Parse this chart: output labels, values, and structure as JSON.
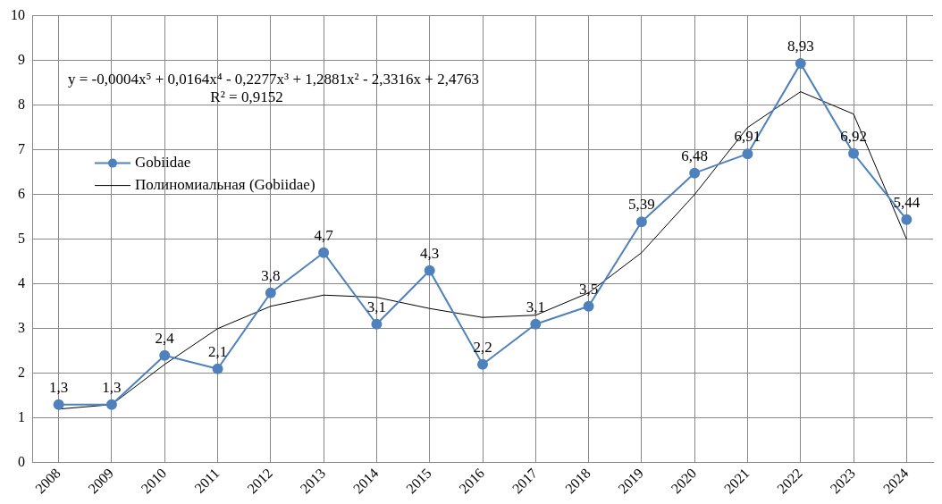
{
  "chart_data": {
    "type": "line",
    "categories": [
      "2008",
      "2009",
      "2010",
      "2011",
      "2012",
      "2013",
      "2014",
      "2015",
      "2016",
      "2017",
      "2018",
      "2019",
      "2020",
      "2021",
      "2022",
      "2023",
      "2024"
    ],
    "series": [
      {
        "name": "Gobiidae",
        "color": "#4f81bd",
        "marker": "circle",
        "values": [
          1.3,
          1.3,
          2.4,
          2.1,
          3.8,
          4.7,
          3.1,
          4.3,
          2.2,
          3.1,
          3.5,
          5.39,
          6.48,
          6.91,
          8.93,
          6.92,
          5.44
        ],
        "value_labels": [
          "1,3",
          "1,3",
          "2,4",
          "2,1",
          "3,8",
          "4,7",
          "3,1",
          "4,3",
          "2,2",
          "3,1",
          "3,5",
          "5,39",
          "6,48",
          "6,91",
          "8,93",
          "6,92",
          "5,44"
        ]
      },
      {
        "name": "Полиномиальная (Gobiidae)",
        "color": "#000000",
        "marker": "none",
        "values": [
          1.2,
          1.3,
          2.2,
          3.0,
          3.5,
          3.75,
          3.7,
          3.45,
          3.25,
          3.3,
          3.8,
          4.7,
          6.0,
          7.5,
          8.3,
          7.8,
          5.0
        ]
      }
    ],
    "ylim": [
      0,
      10
    ],
    "yticks": [
      0,
      1,
      2,
      3,
      4,
      5,
      6,
      7,
      8,
      9,
      10
    ],
    "grid": true,
    "legend": "left",
    "annotations": [
      "y = -0,0004x⁵ + 0,0164x⁴ - 0,2277x³ + 1,2881x² - 2,3316x + 2,4763",
      "R² = 0,9152"
    ]
  }
}
